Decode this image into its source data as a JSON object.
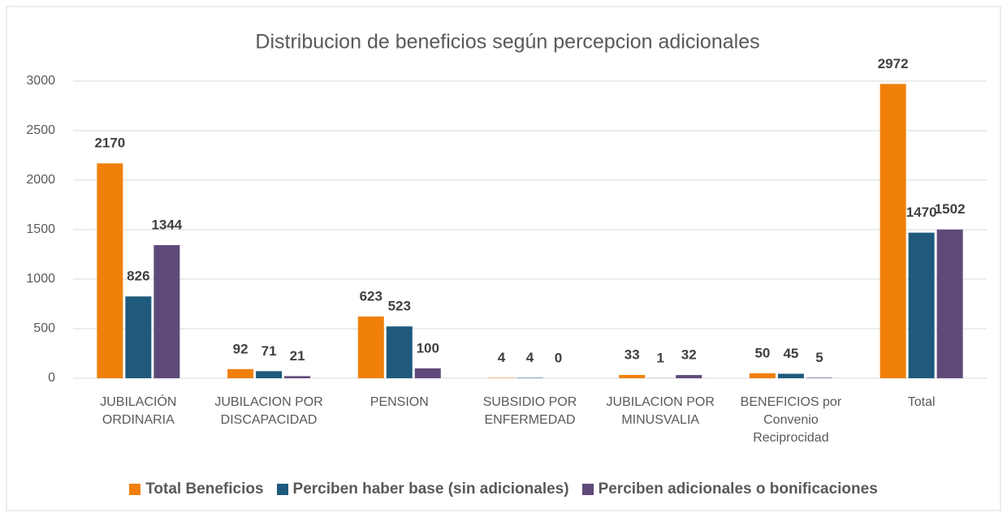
{
  "chart_data": {
    "type": "bar",
    "title": "Distribucion de beneficios según percepcion adicionales",
    "categories": [
      "JUBILACIÓN ORDINARIA",
      "JUBILACION POR DISCAPACIDAD",
      "PENSION",
      "SUBSIDIO POR ENFERMEDAD",
      "JUBILACION POR MINUSVALIA",
      "BENEFICIOS por Convenio Reciprocidad",
      "Total"
    ],
    "series": [
      {
        "name": "Total Beneficios",
        "color": "#f0800a",
        "values": [
          2170,
          92,
          623,
          4,
          33,
          50,
          2972
        ]
      },
      {
        "name": "Perciben haber base (sin adicionales)",
        "color": "#1f5a7c",
        "values": [
          826,
          71,
          523,
          4,
          1,
          45,
          1470
        ]
      },
      {
        "name": "Perciben adicionales o bonificaciones",
        "color": "#5f497a",
        "values": [
          1344,
          21,
          100,
          0,
          32,
          5,
          1502
        ]
      }
    ],
    "ylim": [
      0,
      3000
    ],
    "yticks": [
      0,
      500,
      1000,
      1500,
      2000,
      2500,
      3000
    ],
    "grid": true,
    "legend": "bottom"
  }
}
